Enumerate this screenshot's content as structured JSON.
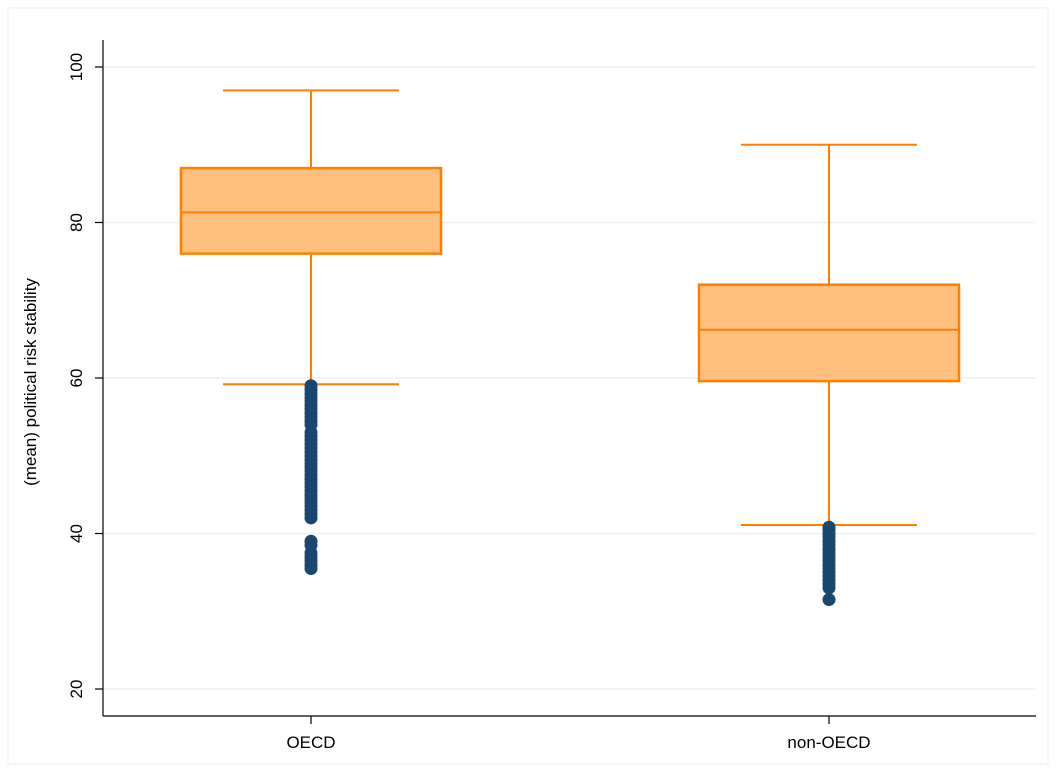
{
  "chart_data": {
    "type": "box",
    "ylabel": "(mean) political risk stability",
    "xlabel": "",
    "ylim": [
      20,
      104
    ],
    "yticks": [
      20,
      40,
      60,
      80,
      100
    ],
    "grid": true,
    "colors": {
      "box_fill": "#ffbf7f",
      "box_line": "#ff7f00",
      "outlier": "#1a476f",
      "grid": "#eaf2f3"
    },
    "categories": [
      "OECD",
      "non-OECD"
    ],
    "boxes": [
      {
        "category": "OECD",
        "whisker_low": 59.2,
        "q1": 76.0,
        "median": 81.3,
        "q3": 87.0,
        "whisker_high": 97.0,
        "outliers": [
          59.0,
          58.5,
          58.0,
          57.5,
          57.0,
          56.5,
          56.0,
          55.5,
          55.0,
          54.5,
          54.0,
          53.0,
          52.5,
          52.0,
          51.5,
          51.0,
          50.5,
          50.0,
          49.5,
          49.0,
          48.5,
          48.0,
          47.5,
          47.0,
          46.5,
          46.0,
          45.5,
          45.0,
          44.5,
          44.0,
          43.5,
          43.0,
          42.5,
          42.0,
          39.0,
          38.5,
          37.5,
          37.0,
          36.5,
          36.0,
          35.5
        ]
      },
      {
        "category": "non-OECD",
        "whisker_low": 41.1,
        "q1": 59.6,
        "median": 66.2,
        "q3": 72.0,
        "whisker_high": 90.0,
        "outliers": [
          40.8,
          40.5,
          40.0,
          39.5,
          39.0,
          38.5,
          38.0,
          37.5,
          37.0,
          36.5,
          36.0,
          35.5,
          35.0,
          34.5,
          34.0,
          33.5,
          33.0,
          31.5
        ]
      }
    ]
  }
}
